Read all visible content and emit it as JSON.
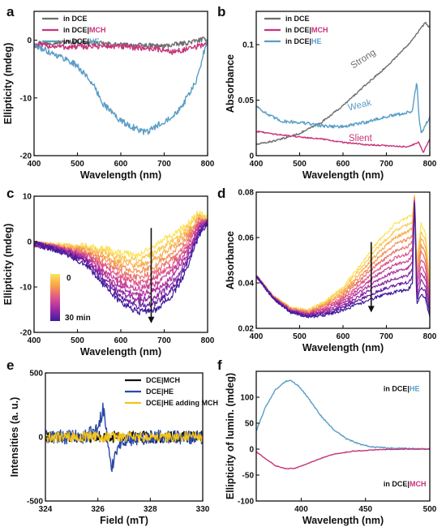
{
  "colors": {
    "gray": "#6e6e6e",
    "pink": "#c8337a",
    "blue": "#5a9ec7",
    "navy": "#2b4aa8",
    "black": "#111111",
    "yellow": "#f2c31c"
  },
  "chart_data": [
    {
      "panel": "a",
      "type": "line",
      "xlabel": "Wavelength (nm)",
      "ylabel": "Ellipticity (mdeg)",
      "xlim": [
        400,
        800
      ],
      "ylim": [
        -20,
        5
      ],
      "xticks": [
        400,
        500,
        600,
        700,
        800
      ],
      "yticks": [
        -20,
        -10,
        0
      ],
      "legend": {
        "position": "top-left",
        "items": [
          {
            "label": "in DCE",
            "color": "gray"
          },
          {
            "label": "in DCE|",
            "suffix": "MCH",
            "color": "pink",
            "suffix_color": "pink"
          },
          {
            "label": "in DCE|",
            "suffix": "HE",
            "color": "blue",
            "suffix_color": "blue"
          }
        ]
      },
      "series": [
        {
          "color": "gray",
          "noise": 0.4,
          "x": [
            400,
            500,
            600,
            700,
            750,
            800
          ],
          "y": [
            -0.5,
            -0.3,
            -0.8,
            -1.0,
            -0.5,
            0.3
          ]
        },
        {
          "color": "pink",
          "noise": 0.5,
          "x": [
            400,
            480,
            560,
            620,
            680,
            720,
            760,
            800
          ],
          "y": [
            -0.8,
            -1.2,
            -1.0,
            -1.2,
            -1.5,
            -2.0,
            -1.5,
            -0.5
          ]
        },
        {
          "color": "blue",
          "noise": 0.55,
          "x": [
            400,
            420,
            450,
            480,
            500,
            530,
            560,
            600,
            640,
            660,
            680,
            700,
            720,
            740,
            760,
            775,
            785,
            795,
            800
          ],
          "y": [
            -1.0,
            -1.5,
            -2.5,
            -3.5,
            -4.5,
            -7.0,
            -11.0,
            -14.0,
            -15.5,
            -16.0,
            -15.0,
            -14.0,
            -13.0,
            -11.5,
            -9.0,
            -7.0,
            -4.0,
            -1.0,
            0.0
          ]
        }
      ]
    },
    {
      "panel": "b",
      "type": "line",
      "xlabel": "Wavelength (nm)",
      "ylabel": "Absorbance",
      "xlim": [
        400,
        800
      ],
      "ylim": [
        0.0,
        0.13
      ],
      "xticks": [
        400,
        500,
        600,
        700,
        800
      ],
      "yticks": [
        0.0,
        0.05,
        0.1
      ],
      "legend": {
        "position": "top-left",
        "items": [
          {
            "label": "in DCE",
            "color": "gray"
          },
          {
            "label": "in DCE|",
            "suffix": "MCH",
            "color": "pink",
            "suffix_color": "pink"
          },
          {
            "label": "in DCE|",
            "suffix": "HE",
            "color": "blue",
            "suffix_color": "blue"
          }
        ]
      },
      "annotations": [
        {
          "text": "Strong",
          "color": "gray",
          "x": 650,
          "y": 0.085,
          "rotate": -33
        },
        {
          "text": "Weak",
          "color": "blue",
          "x": 640,
          "y": 0.043,
          "rotate": -14
        },
        {
          "text": "Slient",
          "color": "pink",
          "x": 640,
          "y": 0.013,
          "rotate": 0
        }
      ],
      "series": [
        {
          "color": "gray",
          "noise": 0.0008,
          "x": [
            400,
            450,
            500,
            550,
            600,
            650,
            700,
            750,
            770,
            790,
            800
          ],
          "y": [
            0.01,
            0.014,
            0.02,
            0.03,
            0.045,
            0.063,
            0.08,
            0.1,
            0.11,
            0.12,
            0.115
          ]
        },
        {
          "color": "blue",
          "noise": 0.0015,
          "x": [
            400,
            430,
            460,
            500,
            550,
            600,
            650,
            700,
            740,
            760,
            770,
            775,
            780,
            800
          ],
          "y": [
            0.045,
            0.036,
            0.031,
            0.03,
            0.027,
            0.026,
            0.03,
            0.035,
            0.038,
            0.04,
            0.067,
            0.035,
            0.02,
            0.035
          ]
        },
        {
          "color": "pink",
          "noise": 0.0006,
          "x": [
            400,
            450,
            500,
            550,
            600,
            650,
            700,
            750,
            775,
            785,
            800
          ],
          "y": [
            0.022,
            0.019,
            0.017,
            0.015,
            0.012,
            0.01,
            0.009,
            0.008,
            0.012,
            0.003,
            0.015
          ]
        }
      ]
    },
    {
      "panel": "c",
      "type": "line",
      "xlabel": "Wavelength (nm)",
      "ylabel": "Ellipticity (mdeg)",
      "xlim": [
        400,
        800
      ],
      "ylim": [
        -20,
        10
      ],
      "xticks": [
        400,
        500,
        600,
        700,
        800
      ],
      "yticks": [
        -20,
        -10,
        0,
        10
      ],
      "colorbar": {
        "top_label": "0",
        "bottom_label": "30 min",
        "stops": [
          "#fce35a",
          "#f8a14a",
          "#e0568a",
          "#a22aa6",
          "#3d1b9c"
        ]
      },
      "arrow": {
        "x": 670,
        "y_from": 3,
        "y_to": -18
      },
      "series_count": 11,
      "series_profile": {
        "x": [
          400,
          440,
          480,
          520,
          560,
          600,
          640,
          680,
          700,
          720,
          740,
          760,
          780,
          800
        ],
        "y_first": [
          -0.5,
          -0.8,
          -1.0,
          -1.0,
          -1.5,
          -2.5,
          -3.0,
          -1.0,
          0.5,
          1.5,
          3.0,
          4.5,
          6.5,
          5.0
        ],
        "y_last": [
          -0.5,
          -1.5,
          -3.0,
          -5.0,
          -9.5,
          -13.5,
          -15.5,
          -15.0,
          -13.5,
          -11.5,
          -8.5,
          -4.0,
          1.5,
          4.0
        ],
        "noise": 0.7
      }
    },
    {
      "panel": "d",
      "type": "line",
      "xlabel": "Wavelength (nm)",
      "ylabel": "Absorbance",
      "xlim": [
        400,
        800
      ],
      "ylim": [
        0.02,
        0.08
      ],
      "xticks": [
        400,
        500,
        600,
        700,
        800
      ],
      "yticks": [
        0.02,
        0.04,
        0.06,
        0.08
      ],
      "arrow": {
        "x": 665,
        "y_from": 0.058,
        "y_to": 0.027
      },
      "series_count": 11,
      "series_profile": {
        "x": [
          400,
          440,
          480,
          520,
          560,
          600,
          640,
          680,
          720,
          750,
          760,
          765,
          770,
          780,
          790,
          800
        ],
        "y_first": [
          0.043,
          0.034,
          0.029,
          0.028,
          0.032,
          0.038,
          0.048,
          0.058,
          0.066,
          0.069,
          0.07,
          0.079,
          0.05,
          0.066,
          0.062,
          0.04
        ],
        "y_last": [
          0.043,
          0.033,
          0.027,
          0.025,
          0.026,
          0.028,
          0.031,
          0.034,
          0.036,
          0.037,
          0.04,
          0.078,
          0.03,
          0.035,
          0.033,
          0.025
        ],
        "noise": 0.0007
      }
    },
    {
      "panel": "e",
      "type": "line",
      "xlabel": "Field (mT)",
      "ylabel": "Intensities (a. u.)",
      "xlim": [
        324,
        330
      ],
      "ylim": [
        -500,
        500
      ],
      "xticks": [
        324,
        326,
        328,
        330
      ],
      "yticks": [
        -500,
        0,
        500
      ],
      "legend": {
        "position": "top-right",
        "items": [
          {
            "label": "DCE|MCH",
            "color": "black"
          },
          {
            "label": "DCE|HE",
            "color": "navy"
          },
          {
            "label": "DCE|HE adding MCH",
            "color": "yellow"
          }
        ]
      },
      "series": [
        {
          "color": "black",
          "noise": 45,
          "x": [
            324,
            326,
            328,
            330
          ],
          "y": [
            0,
            0,
            0,
            0
          ]
        },
        {
          "color": "navy",
          "noise": 55,
          "x": [
            324,
            325.5,
            326.0,
            326.2,
            326.35,
            326.5,
            326.7,
            327.0,
            328,
            330
          ],
          "y": [
            0,
            0,
            60,
            230,
            20,
            -260,
            -90,
            -20,
            0,
            0
          ]
        },
        {
          "color": "yellow",
          "noise": 40,
          "x": [
            324,
            326,
            328,
            330
          ],
          "y": [
            0,
            0,
            0,
            0
          ]
        }
      ]
    },
    {
      "panel": "f",
      "type": "line",
      "xlabel": "Wavelength (nm)",
      "ylabel": "Ellipticity of lumin. (mdeg)",
      "xlim": [
        365,
        500
      ],
      "ylim": [
        -100,
        150
      ],
      "xticks": [
        400,
        450,
        500
      ],
      "yticks": [
        -100,
        -50,
        0,
        50,
        100
      ],
      "annotations_legend": [
        {
          "label": "in DCE|",
          "suffix": "HE",
          "color": "blue",
          "x": 464,
          "y": 112
        },
        {
          "label": "in DCE|",
          "suffix": "MCH",
          "color": "pink",
          "x": 464,
          "y": -72
        }
      ],
      "series": [
        {
          "color": "blue",
          "noise": 1.2,
          "x": [
            365,
            372,
            380,
            388,
            392,
            398,
            405,
            415,
            425,
            435,
            445,
            455,
            470,
            485,
            500
          ],
          "y": [
            35,
            80,
            115,
            131,
            132,
            122,
            100,
            65,
            38,
            20,
            10,
            4,
            2,
            1,
            0
          ]
        },
        {
          "color": "pink",
          "noise": 0.6,
          "x": [
            365,
            372,
            380,
            388,
            395,
            405,
            415,
            425,
            440,
            460,
            480,
            500
          ],
          "y": [
            -5,
            -18,
            -32,
            -38,
            -37,
            -28,
            -18,
            -10,
            -4,
            -1,
            0,
            0
          ]
        }
      ]
    }
  ]
}
